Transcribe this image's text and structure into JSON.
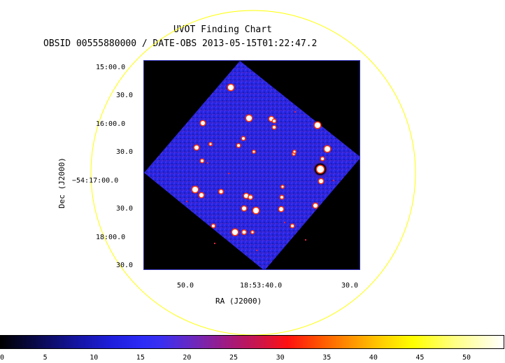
{
  "header": {
    "title": "UVOT Finding Chart",
    "subtitle": "OBSID 00555880000 / DATE-OBS 2013-05-15T01:22:47.2"
  },
  "axes": {
    "dec_label": "Dec (J2000)",
    "ra_label": "RA (J2000)",
    "dec_ticks": [
      "15:00.0",
      "30.0",
      "16:00.0",
      "30.0",
      "−54:17:00.0",
      "30.0",
      "18:00.0",
      "30.0"
    ],
    "ra_ticks": [
      "50.0",
      "18:53:40.0",
      "30.0"
    ]
  },
  "colorbar": {
    "ticks": [
      "0",
      "5",
      "10",
      "15",
      "20",
      "25",
      "30",
      "35",
      "40",
      "45",
      "50"
    ]
  },
  "colors": {
    "circle": "#ffff00",
    "field_fill": "#2828e6",
    "frame": "#2f2fb8"
  }
}
